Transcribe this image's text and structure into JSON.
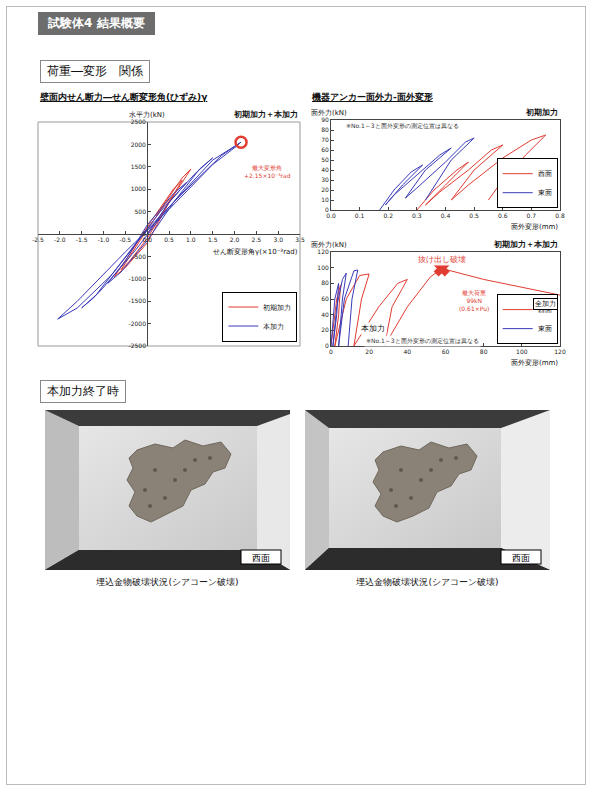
{
  "header": {
    "title": "試験体4 結果概要"
  },
  "sections": [
    {
      "title": "荷重―変形　関係"
    },
    {
      "title": "本加力終了時"
    }
  ],
  "chart_data": [
    {
      "type": "line",
      "title": "壁面内せん断力―せん断変形角(ひずみ)γ",
      "x_label": "せん断変形角γ(×10⁻³rad)",
      "y_label": "水平力(kN)",
      "heading": "初期加力＋本加力",
      "xlim": [
        -2.5,
        3.5
      ],
      "xticks": [
        -2.5,
        {
          "value": -2,
          "label": "-2.0"
        },
        -1.5,
        {
          "value": -1,
          "label": "-1.0"
        },
        -0.5,
        {
          "value": 0,
          "label": "0.0"
        },
        0.5,
        {
          "value": 1,
          "label": "1.0"
        },
        1.5,
        {
          "value": 2,
          "label": "2.0"
        },
        2.5,
        {
          "value": 3,
          "label": "3.0"
        },
        3.5
      ],
      "ylim": [
        -2500,
        2500
      ],
      "yticks": [
        -2500,
        -2000,
        -1500,
        -1000,
        -500,
        0,
        500,
        1000,
        1500,
        2000,
        2500
      ],
      "grid": false,
      "legend": "bottom right",
      "series": [
        {
          "name": "初期加力",
          "color": "#e03c31",
          "x": [
            0,
            0.3,
            0.6,
            0.4,
            0,
            -0.3,
            -0.6,
            -0.4,
            0,
            0.4,
            0.8,
            0.6,
            0.1,
            -0.4,
            -0.75,
            -0.5,
            0,
            0.5,
            1.0,
            0.8,
            0.2
          ],
          "values": [
            0,
            400,
            850,
            650,
            100,
            -350,
            -800,
            -600,
            -100,
            550,
            1200,
            1000,
            300,
            -450,
            -950,
            -750,
            -200,
            700,
            1450,
            1250,
            400
          ]
        },
        {
          "name": "本加力",
          "color": "#3a3ab8",
          "x": [
            0,
            0.5,
            0.9,
            0.6,
            0,
            -0.5,
            -0.9,
            -0.6,
            0,
            0.6,
            1.2,
            1.5,
            1.1,
            0.3,
            -0.5,
            -1.2,
            -1.5,
            -1.1,
            -0.3,
            0.5,
            1.5,
            2.15,
            1.7,
            0.8,
            0,
            -0.8,
            -1.6,
            -2.05,
            -1.6,
            -0.5,
            0.5,
            1.5,
            2.1
          ],
          "values": [
            0,
            700,
            1150,
            900,
            200,
            -600,
            -1100,
            -850,
            -150,
            700,
            1450,
            1700,
            1350,
            500,
            -500,
            -1400,
            -1650,
            -1300,
            -400,
            600,
            1650,
            2050,
            1750,
            900,
            100,
            -900,
            -1650,
            -1900,
            -1500,
            -400,
            550,
            1550,
            2000
          ]
        }
      ],
      "max_point": {
        "x": 2.15,
        "y": 2050,
        "marker": "circle-open",
        "color": "#e03c31"
      },
      "annotations": [
        {
          "text": [
            "最大変形角",
            "+2.15×10⁻³rad"
          ],
          "x": 2.75,
          "y": 1400,
          "color": "#e03c31"
        }
      ]
    },
    {
      "type": "line",
      "title": "機器アンカー面外力-面外変形",
      "x_label": "面外変形(mm)",
      "y_label": "面外力(kN)",
      "heading": "初期加力",
      "xlim": [
        0,
        0.8
      ],
      "xticks": [
        {
          "value": 0,
          "label": "0.0"
        },
        0.1,
        0.2,
        0.3,
        0.4,
        0.5,
        0.6,
        0.7,
        0.8
      ],
      "ylim": [
        0,
        90
      ],
      "yticks": [
        0,
        10,
        20,
        30,
        40,
        50,
        60,
        70,
        80,
        90
      ],
      "grid": false,
      "legend": "bottom right",
      "series": [
        {
          "name": "西面",
          "color": "#e03c31",
          "x": [
            0.3,
            0.36,
            0.44,
            0.48,
            0.4,
            0.33,
            0.38,
            0.48,
            0.56,
            0.6,
            0.5,
            0.42,
            0.48,
            0.6,
            0.7,
            0.75,
            0.68,
            0.6,
            0.55
          ],
          "values": [
            0,
            20,
            40,
            48,
            25,
            5,
            18,
            40,
            60,
            65,
            40,
            10,
            25,
            52,
            70,
            75,
            55,
            30,
            10
          ]
        },
        {
          "name": "東面",
          "color": "#3a3ab8",
          "x": [
            0.17,
            0.22,
            0.28,
            0.32,
            0.25,
            0.19,
            0.22,
            0.3,
            0.38,
            0.42,
            0.33,
            0.26,
            0.3,
            0.4,
            0.47,
            0.5,
            0.42,
            0.33
          ],
          "values": [
            0,
            20,
            38,
            45,
            25,
            5,
            15,
            35,
            55,
            62,
            40,
            12,
            22,
            48,
            68,
            72,
            50,
            10
          ]
        }
      ],
      "annotations": [
        {
          "text": "※No.1～3と面外変形の測定位置は異なる",
          "x": 0.25,
          "y": 84,
          "color": "#333333"
        }
      ]
    },
    {
      "type": "line",
      "x_label": "面外変形(mm)",
      "y_label": "面外力(kN)",
      "heading": "初期加力＋本加力",
      "box_label": "全加力",
      "xlim": [
        0,
        120
      ],
      "xticks": [
        0,
        20,
        40,
        60,
        80,
        100,
        120
      ],
      "ylim": [
        0,
        120
      ],
      "yticks": [
        0,
        20,
        40,
        60,
        80,
        100,
        120
      ],
      "grid": false,
      "legend": "bottom right",
      "series": [
        {
          "name": "西面",
          "color": "#e03c31",
          "x": [
            0,
            3,
            5,
            4,
            2,
            8,
            15,
            20,
            16,
            12,
            25,
            35,
            40,
            32,
            28,
            40,
            52,
            58,
            80,
            100,
            120
          ],
          "values": [
            0,
            60,
            78,
            40,
            0,
            60,
            90,
            92,
            60,
            0,
            50,
            80,
            85,
            50,
            0,
            50,
            88,
            99,
            85,
            75,
            65
          ]
        },
        {
          "name": "東面",
          "color": "#3a3ab8",
          "x": [
            0,
            2,
            4,
            3,
            1,
            3,
            6,
            8,
            6,
            4,
            7,
            12,
            14,
            11,
            9
          ],
          "values": [
            0,
            60,
            80,
            40,
            0,
            50,
            85,
            93,
            60,
            0,
            60,
            96,
            97,
            60,
            0
          ]
        }
      ],
      "max_point": {
        "x": 58,
        "y": 99,
        "marker": "x",
        "color": "#e03c31"
      },
      "annotations": [
        {
          "text": "抜け出し破壊",
          "x": 58,
          "y": 110,
          "color": "#e03c31"
        },
        {
          "text": [
            "最大荷重",
            "99kN",
            "(0.61×Pu)"
          ],
          "x": 75,
          "y": 58,
          "color": "#e03c31"
        },
        {
          "text": "本加力",
          "x": 22,
          "y": 22,
          "color": "#111111"
        },
        {
          "text": "※No.1～3と面外変形の測定位置は異なる",
          "x": 48,
          "y": 6,
          "color": "#333333"
        }
      ]
    }
  ],
  "photos": [
    {
      "label": "西面",
      "caption": "埋込金物破壊状況(シアコーン破壊)"
    },
    {
      "label": "西面",
      "caption": "埋込金物破壊状況(シアコーン破壊)"
    }
  ]
}
